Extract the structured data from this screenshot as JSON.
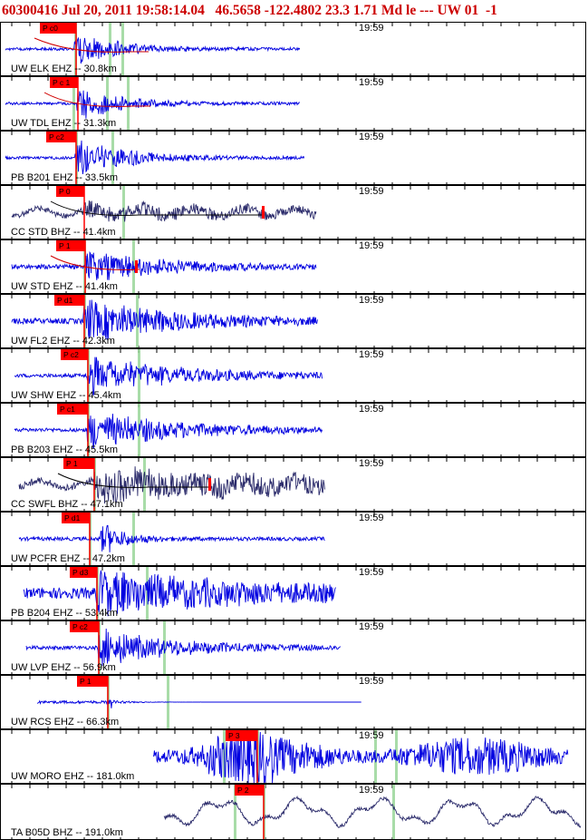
{
  "header": {
    "text": "60300416 Jul 20, 2011 19:58:14.04   46.5658 -122.4802 23.3 1.71 Md le --- UW 01  -1"
  },
  "time_tick_label": "19:59",
  "colors": {
    "trace_blue": "#0000e0",
    "trace_navy": "#2b2b6b",
    "pick_red": "#ff0000",
    "fit_red": "#d00000",
    "marker_green": "#99d699",
    "header_red": "#cc0000"
  },
  "panels": [
    {
      "label": "UW ELK EHZ -- 30.8km",
      "pick": "P c0",
      "color": "trace_blue"
    },
    {
      "label": "UW TDL EHZ -- 31.3km",
      "pick": "P c 1",
      "color": "trace_blue"
    },
    {
      "label": "PB B201 EHZ -- 33.5km",
      "pick": "P c2",
      "color": "trace_blue"
    },
    {
      "label": "CC STD BHZ -- 41.4km",
      "pick": "P 0",
      "color": "trace_navy"
    },
    {
      "label": "UW STD EHZ -- 41.4km",
      "pick": "P 1",
      "color": "trace_blue"
    },
    {
      "label": "UW FL2 EHZ -- 42.3km",
      "pick": "P d1",
      "color": "trace_blue"
    },
    {
      "label": "UW SHW EHZ -- 45.4km",
      "pick": "P c2",
      "color": "trace_blue"
    },
    {
      "label": "PB B203 EHZ -- 45.5km",
      "pick": "P c1",
      "color": "trace_blue"
    },
    {
      "label": "CC SWFL BHZ -- 47.1km",
      "pick": "P 1",
      "color": "trace_navy"
    },
    {
      "label": "UW PCFR EHZ -- 47.2km",
      "pick": "P d1",
      "color": "trace_blue"
    },
    {
      "label": "PB B204 EHZ -- 53.4km",
      "pick": "P d3",
      "color": "trace_blue"
    },
    {
      "label": "UW LVP EHZ -- 56.9km",
      "pick": "P c2",
      "color": "trace_blue"
    },
    {
      "label": "UW RCS EHZ -- 66.3km",
      "pick": "P 1",
      "color": "trace_blue"
    },
    {
      "label": "UW MORO EHZ -- 181.0km",
      "pick": "P 3",
      "color": "trace_blue"
    },
    {
      "label": "TA B05D BHZ -- 191.0km",
      "pick": "P 2",
      "color": "trace_navy"
    }
  ]
}
